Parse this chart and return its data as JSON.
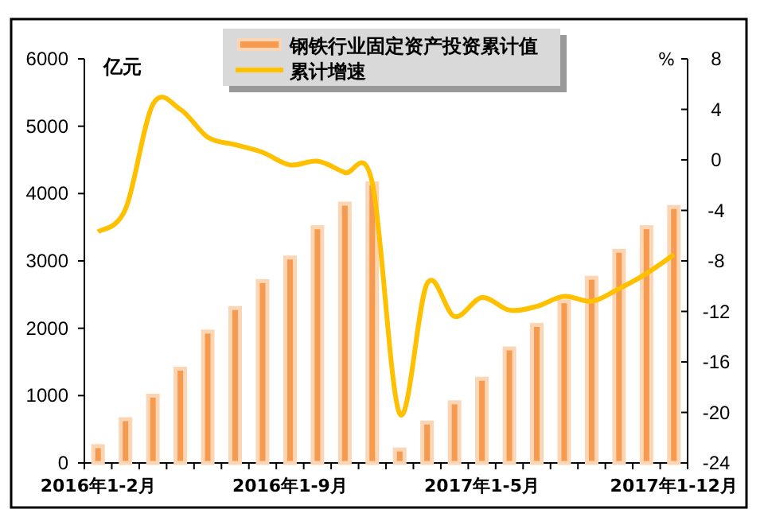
{
  "chart_data": {
    "type": "bar",
    "categories": [
      "2016年1-2月",
      null,
      null,
      null,
      null,
      null,
      null,
      "2016年1-9月",
      null,
      null,
      null,
      null,
      null,
      null,
      "2017年1-5月",
      null,
      null,
      null,
      null,
      null,
      null,
      "2017年1-12月"
    ],
    "ylabel": "亿元",
    "y2label": "%",
    "ylim": [
      0,
      6000
    ],
    "yticks": [
      0,
      1000,
      2000,
      3000,
      4000,
      5000,
      6000
    ],
    "y2lim": [
      -24,
      8
    ],
    "y2ticks": [
      -24,
      -20,
      -16,
      -12,
      -8,
      -4,
      0,
      4,
      8
    ],
    "legend": "top",
    "marker": "none",
    "line_style": "solid",
    "series": [
      {
        "name": "钢铁行业固定资产投资累计值",
        "color": "#f59a4f",
        "values": [
          250,
          650,
          1000,
          1400,
          1950,
          2300,
          2700,
          3050,
          3500,
          3850,
          4150,
          200,
          600,
          900,
          1250,
          1700,
          2050,
          2400,
          2750,
          3150,
          3500,
          3800
        ]
      },
      {
        "name": "累计增速",
        "type": "line",
        "axis": "y2",
        "color": "#ffc000",
        "values": [
          -5.7,
          -3.9,
          4.4,
          4.0,
          1.8,
          1.2,
          0.6,
          -0.4,
          -0.1,
          -1.0,
          -1.8,
          -20.1,
          -9.8,
          -12.4,
          -10.9,
          -11.9,
          -11.6,
          -10.8,
          -11.2,
          -10.2,
          -9.0,
          -7.5
        ]
      }
    ]
  }
}
